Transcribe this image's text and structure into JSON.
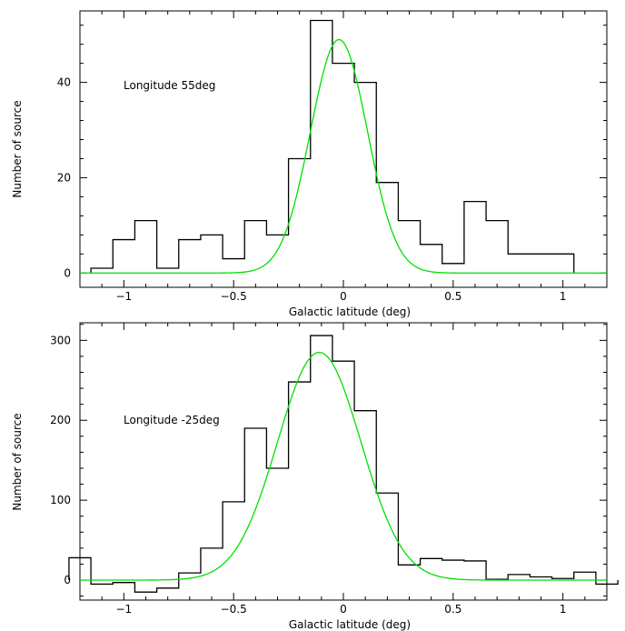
{
  "chart_data": [
    {
      "type": "bar",
      "annotation": "Longitude 55deg",
      "xlabel": "Galactic latitude (deg)",
      "ylabel": "Number of source",
      "xlim": [
        -1.2,
        1.2
      ],
      "ylim": [
        -3,
        55
      ],
      "xticks": [
        -1,
        -0.5,
        0,
        0.5,
        1
      ],
      "xtick_labels": [
        "−1",
        "−0.5",
        "0",
        "0.5",
        "1"
      ],
      "yticks": [
        0,
        20,
        40
      ],
      "ytick_labels": [
        "0",
        "20",
        "40"
      ],
      "bin_edges": [
        -1.15,
        -1.05,
        -0.95,
        -0.85,
        -0.75,
        -0.65,
        -0.55,
        -0.45,
        -0.35,
        -0.25,
        -0.15,
        -0.05,
        0.05,
        0.15,
        0.25,
        0.35,
        0.45,
        0.55,
        0.65,
        0.75,
        0.85,
        0.95,
        1.05
      ],
      "counts": [
        1,
        7,
        11,
        1,
        7,
        8,
        3,
        11,
        8,
        24,
        53,
        44,
        40,
        19,
        11,
        6,
        2,
        15,
        11,
        4,
        4,
        4
      ],
      "gaussian_fit": {
        "amplitude": 49,
        "center": -0.02,
        "sigma": 0.13,
        "color": "#00e000"
      },
      "histogram_color": "#000000"
    },
    {
      "type": "bar",
      "annotation": "Longitude -25deg",
      "xlabel": "Galactic latitude (deg)",
      "ylabel": "Number of source",
      "xlim": [
        -1.2,
        1.2
      ],
      "ylim": [
        -25,
        322
      ],
      "xticks": [
        -1,
        -0.5,
        0,
        0.5,
        1
      ],
      "xtick_labels": [
        "−1",
        "−0.5",
        "0",
        "0.5",
        "1"
      ],
      "yticks": [
        0,
        100,
        200,
        300
      ],
      "ytick_labels": [
        "0",
        "100",
        "200",
        "300"
      ],
      "bin_edges": [
        -1.25,
        -1.15,
        -1.05,
        -0.95,
        -0.85,
        -0.75,
        -0.65,
        -0.55,
        -0.45,
        -0.35,
        -0.25,
        -0.15,
        -0.05,
        0.05,
        0.15,
        0.25,
        0.35,
        0.45,
        0.55,
        0.65,
        0.75,
        0.85,
        0.95,
        1.05,
        1.15,
        1.25
      ],
      "counts": [
        28,
        -5,
        -3,
        -15,
        -10,
        9,
        40,
        98,
        190,
        140,
        248,
        306,
        274,
        212,
        109,
        19,
        27,
        25,
        24,
        1,
        7,
        4,
        2,
        10,
        -5
      ],
      "gaussian_fit": {
        "amplitude": 285,
        "center": -0.11,
        "sigma": 0.19,
        "color": "#00e000"
      },
      "histogram_color": "#000000"
    }
  ]
}
